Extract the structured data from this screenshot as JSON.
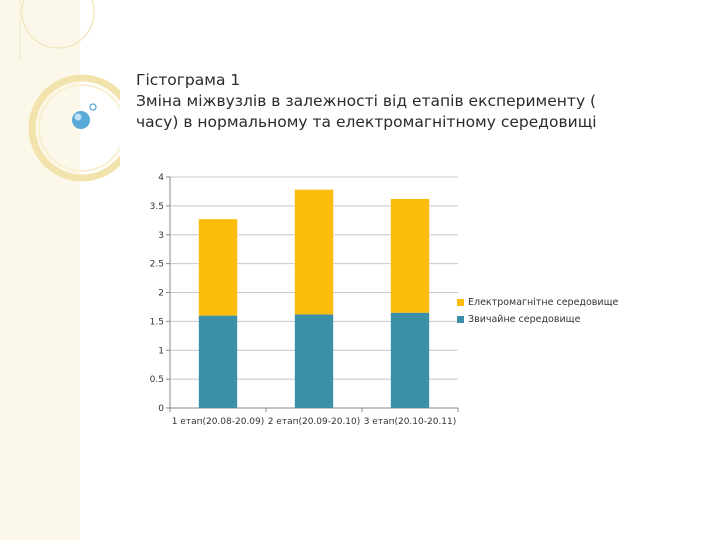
{
  "slide": {
    "title_lines": [
      "Гістограма 1",
      "Зміна міжвузлів в залежності від етапів експерименту  (",
      "часу) в нормальному та електромагнітному середовищі"
    ]
  },
  "theme": {
    "panel_color": "#fbf8ea",
    "ring_color": "#f0dfa8",
    "bubble_color": "#5aaad8"
  },
  "chart_data": {
    "type": "bar",
    "stacked": true,
    "categories": [
      "1 етап(20.08-20.09)",
      "2 етап(20.09-20.10)",
      "3 етап(20.10-20.11)"
    ],
    "series": [
      {
        "name": "Звичайне середовище",
        "values": [
          1.6,
          1.62,
          1.65
        ],
        "color": "#3b8fa7"
      },
      {
        "name": "Електромагнітне середовище",
        "values": [
          1.67,
          2.16,
          1.97
        ],
        "color": "#fbbd0a"
      }
    ],
    "ylim": [
      0,
      4
    ],
    "yticks": [
      "0",
      "0.5",
      "1",
      "1.5",
      "2",
      "2.5",
      "3",
      "3.5",
      "4"
    ],
    "grid": true,
    "legend_position": "right",
    "legend_order": [
      "Електромагнітне середовище",
      "Звичайне середовище"
    ]
  }
}
